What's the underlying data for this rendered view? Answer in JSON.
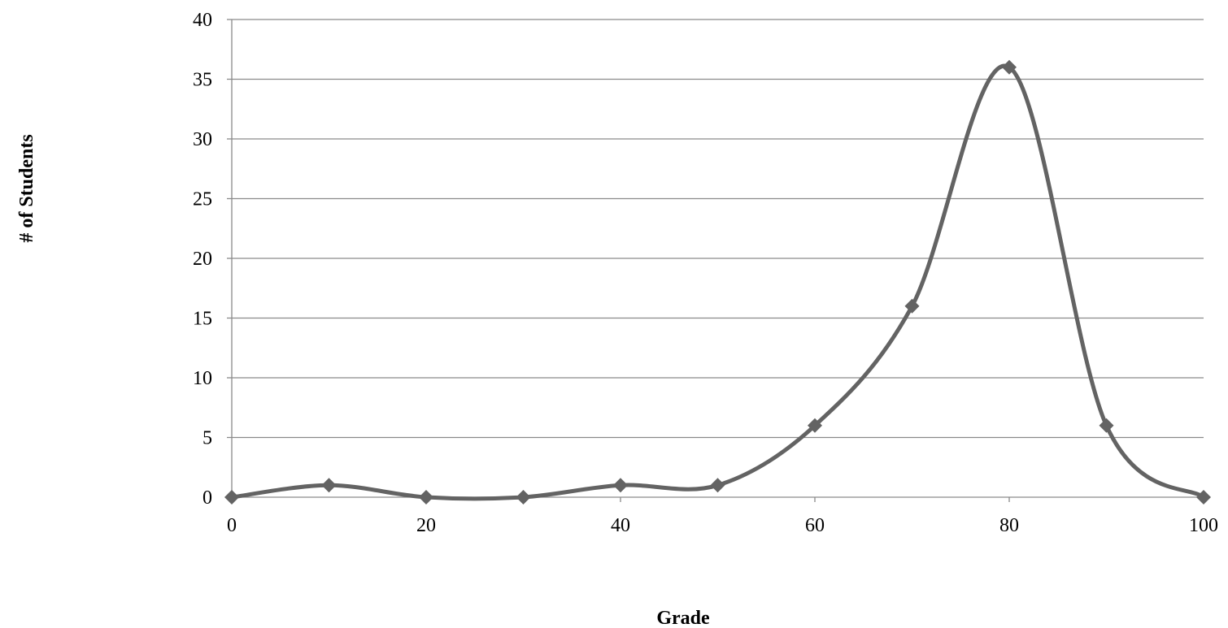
{
  "chart_data": {
    "type": "line",
    "smooth": true,
    "title": "",
    "xlabel": "Grade",
    "ylabel": "# of Students",
    "xlim": [
      0,
      100
    ],
    "ylim": [
      0,
      40
    ],
    "x_ticks": [
      0,
      20,
      40,
      60,
      80,
      100
    ],
    "y_ticks": [
      0,
      5,
      10,
      15,
      20,
      25,
      30,
      35,
      40
    ],
    "grid": "horizontal",
    "legend": "none",
    "series": [
      {
        "color": "#636363",
        "marker": "diamond",
        "x": [
          0,
          10,
          20,
          30,
          40,
          50,
          60,
          70,
          80,
          90,
          100
        ],
        "y": [
          0,
          1,
          0,
          0,
          1,
          1,
          6,
          16,
          36,
          6,
          0
        ]
      }
    ]
  }
}
